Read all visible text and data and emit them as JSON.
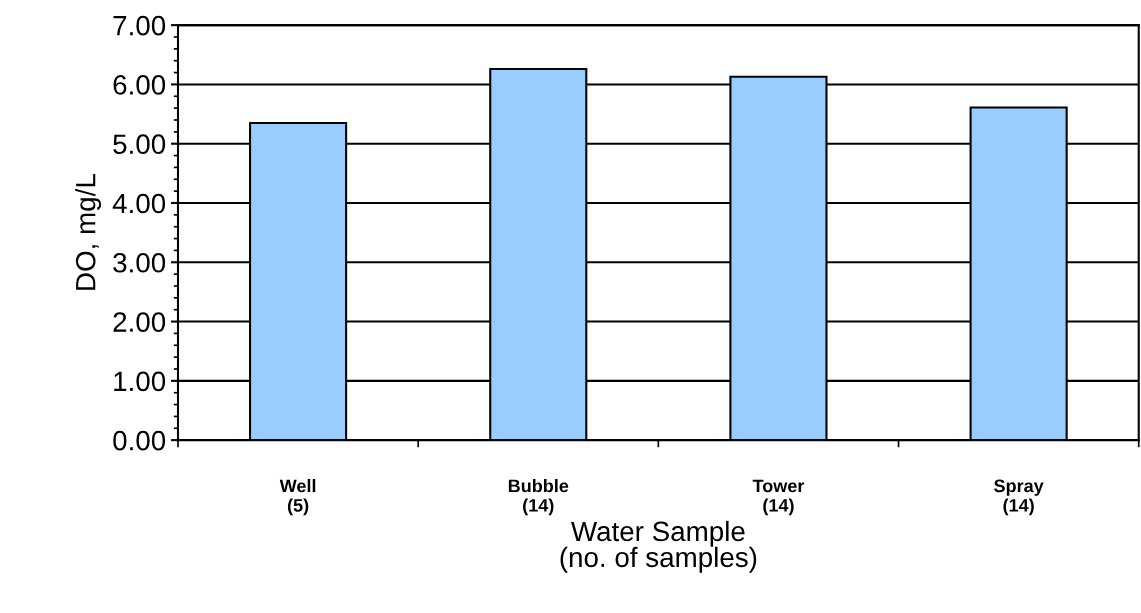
{
  "chart_data": {
    "type": "bar",
    "xlabel": "Water Sample\n(no. of samples)",
    "ylabel": "DO, mg/L",
    "categories": [
      "Well\n(5)",
      "Bubble\n(14)",
      "Tower\n(14)",
      "Spray\n(14)"
    ],
    "values": [
      5.35,
      6.26,
      6.13,
      5.61
    ],
    "color": "#99ccff",
    "ylim": [
      0,
      7
    ],
    "yticks": [
      {
        "value": 0,
        "label": "0.00"
      },
      {
        "value": 1,
        "label": "1.00"
      },
      {
        "value": 2,
        "label": "2.00"
      },
      {
        "value": 3,
        "label": "3.00"
      },
      {
        "value": 4,
        "label": "4.00"
      },
      {
        "value": 5,
        "label": "5.00"
      },
      {
        "value": 6,
        "label": "6.00"
      },
      {
        "value": 7,
        "label": "7.00"
      }
    ],
    "grid": "y",
    "legend": false
  }
}
